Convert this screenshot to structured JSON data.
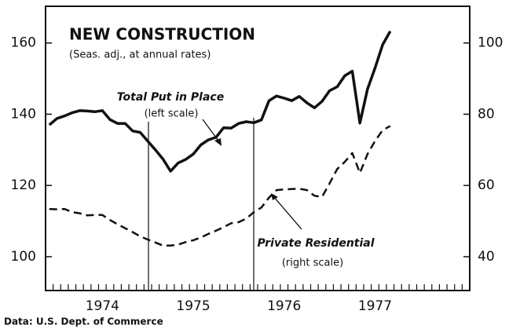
{
  "chart_data": {
    "type": "line",
    "title": "NEW CONSTRUCTION",
    "subtitle": "(Seas. adj., at annual rates)",
    "source": "Data:  U.S. Dept. of Commerce",
    "categories": [
      null,
      null,
      null,
      null,
      null,
      null,
      null,
      "1974",
      null,
      null,
      null,
      null,
      null,
      null,
      null,
      null,
      null,
      null,
      null,
      "1975",
      null,
      null,
      null,
      null,
      null,
      null,
      null,
      null,
      null,
      null,
      null,
      "1976",
      null,
      null,
      null,
      null,
      null,
      null,
      null,
      null,
      null,
      null,
      null,
      "1977",
      null,
      null,
      null,
      null,
      null,
      null,
      null,
      null,
      null,
      null,
      null,
      null
    ],
    "series": [
      {
        "name": "Total Put in Place",
        "note": "(left scale)",
        "color": "#111111",
        "style": "solid",
        "axis": "y",
        "values": [
          137.0,
          138.8,
          139.5,
          140.4,
          141.0,
          140.9,
          140.7,
          141.0,
          138.5,
          137.4,
          137.4,
          135.3,
          134.9,
          132.4,
          130.0,
          127.4,
          124.0,
          126.3,
          127.3,
          128.8,
          131.4,
          132.8,
          133.5,
          136.2,
          136.1,
          137.4,
          137.9,
          137.6,
          138.4,
          143.8,
          145.1,
          144.5,
          143.8,
          145.0,
          143.2,
          141.8,
          143.6,
          146.6,
          147.7,
          150.8,
          152.1,
          137.5,
          147.0,
          153.0,
          159.5,
          163.3,
          null,
          null,
          null,
          null,
          null,
          null,
          null,
          null,
          null,
          null
        ]
      },
      {
        "name": "Private Residential",
        "note": "(right scale)",
        "color": "#111111",
        "style": "dashed",
        "axis": "y2",
        "values": [
          53.4,
          53.3,
          53.4,
          52.5,
          52.2,
          51.6,
          51.7,
          51.7,
          50.3,
          49.1,
          48.0,
          46.9,
          45.7,
          44.8,
          44.0,
          43.1,
          43.1,
          43.4,
          44.1,
          44.6,
          45.4,
          46.4,
          47.3,
          48.3,
          49.4,
          49.7,
          50.7,
          52.5,
          53.8,
          56.6,
          58.7,
          58.9,
          59.0,
          59.1,
          58.7,
          57.1,
          56.8,
          60.6,
          64.6,
          66.6,
          69.1,
          63.5,
          68.8,
          72.5,
          75.5,
          76.7,
          null,
          null,
          null,
          null,
          null,
          null,
          null,
          null,
          null,
          null
        ]
      }
    ],
    "ylim": [
      90.5,
      170.3
    ],
    "yticks": [
      100,
      120,
      140,
      160
    ],
    "y2lim": [
      30.5,
      110.3
    ],
    "y2ticks": [
      40,
      60,
      80,
      100
    ],
    "grid": false
  }
}
